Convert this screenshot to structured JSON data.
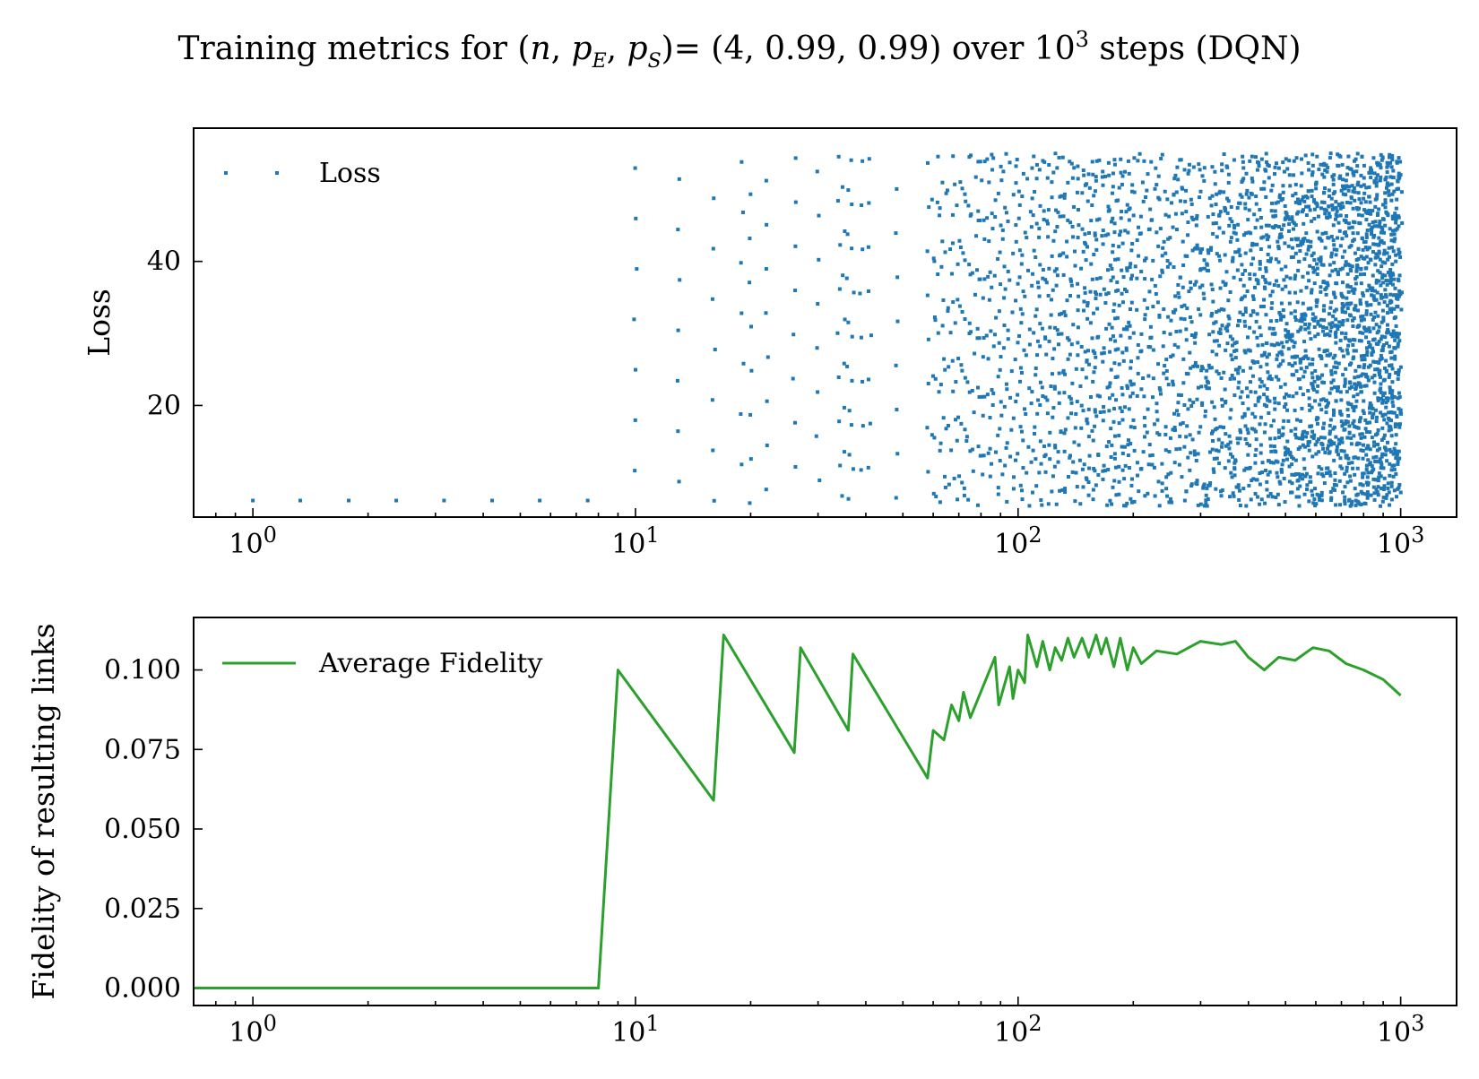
{
  "figure": {
    "title": {
      "prefix": "Training metrics for (",
      "var_n": "n",
      "sep1": ", ",
      "var_p1": "p",
      "sub1": "E",
      "sep2": ", ",
      "var_p2": "p",
      "sub2": "S",
      "suffix": ")= (4, 0.99, 0.99) over 10",
      "exp": "3",
      "tail": " steps (DQN)"
    }
  },
  "colors": {
    "loss": "#1f77b4",
    "fidelity": "#2ca02c",
    "axis": "#000000"
  },
  "chart_data": [
    {
      "type": "scatter",
      "xscale": "log",
      "xlim": [
        0.7,
        1400
      ],
      "ylim": [
        4.5,
        58.5
      ],
      "ylabel": "Loss",
      "xticks": [
        {
          "base": "10",
          "exp": "0"
        },
        {
          "base": "10",
          "exp": "1"
        },
        {
          "base": "10",
          "exp": "2"
        },
        {
          "base": "10",
          "exp": "3"
        }
      ],
      "yticks": [
        "20",
        "40"
      ],
      "ytick_values": [
        20,
        40
      ],
      "legend": {
        "label": "Loss",
        "position": "top-left"
      },
      "series": [
        {
          "name": "Loss",
          "marker": "dot",
          "description_values": {
            "early_x": [
              1,
              1.33,
              1.78,
              2.37,
              3.16,
              4.22,
              5.62,
              7.5
            ],
            "early_y": 6.8,
            "x_range": [
              1,
              1000
            ],
            "y_range": [
              6,
              55
            ]
          }
        }
      ]
    },
    {
      "type": "line",
      "xscale": "log",
      "xlim": [
        0.7,
        1400
      ],
      "ylim": [
        -0.0055,
        0.1165
      ],
      "ylabel": "Fidelity of resulting links",
      "xticks": [
        {
          "base": "10",
          "exp": "0"
        },
        {
          "base": "10",
          "exp": "1"
        },
        {
          "base": "10",
          "exp": "2"
        },
        {
          "base": "10",
          "exp": "3"
        }
      ],
      "yticks": [
        "0.000",
        "0.025",
        "0.050",
        "0.075",
        "0.100"
      ],
      "ytick_values": [
        0,
        0.025,
        0.05,
        0.075,
        0.1
      ],
      "legend": {
        "label": "Average Fidelity",
        "position": "top-left"
      },
      "series": [
        {
          "name": "Average Fidelity",
          "x": [
            1,
            8,
            9,
            16,
            17,
            26,
            27,
            36,
            37,
            58,
            60,
            64,
            67,
            70,
            72,
            75,
            87,
            89,
            95,
            97,
            100,
            104,
            106,
            112,
            116,
            121,
            125,
            130,
            135,
            140,
            147,
            153,
            160,
            165,
            170,
            178,
            185,
            193,
            200,
            210,
            230,
            260,
            300,
            340,
            370,
            400,
            440,
            480,
            530,
            590,
            650,
            720,
            800,
            900,
            1000
          ],
          "y": [
            0,
            0,
            0.1,
            0.059,
            0.111,
            0.074,
            0.107,
            0.081,
            0.105,
            0.066,
            0.081,
            0.078,
            0.089,
            0.084,
            0.093,
            0.085,
            0.104,
            0.089,
            0.101,
            0.091,
            0.1,
            0.096,
            0.111,
            0.101,
            0.109,
            0.1,
            0.107,
            0.103,
            0.11,
            0.104,
            0.11,
            0.104,
            0.111,
            0.105,
            0.11,
            0.101,
            0.11,
            0.1,
            0.107,
            0.102,
            0.106,
            0.105,
            0.109,
            0.108,
            0.109,
            0.104,
            0.1,
            0.104,
            0.103,
            0.107,
            0.106,
            0.102,
            0.1,
            0.097,
            0.092
          ]
        }
      ]
    }
  ]
}
